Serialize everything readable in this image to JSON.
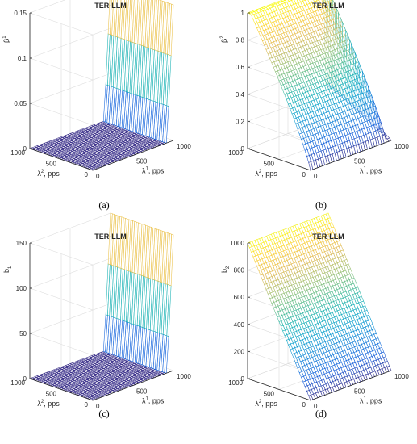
{
  "chart_data": [
    {
      "type": "surface",
      "panel_label": "(a)",
      "title": "TER-LLM",
      "xlabel": "λ1, pps",
      "ylabel": "λ2, pps",
      "zlabel": "β1",
      "xlabel_parts": {
        "sym": "λ",
        "sup": "1",
        "rest": ", pps"
      },
      "ylabel_parts": {
        "sym": "λ",
        "sup": "2",
        "rest": ", pps"
      },
      "zlabel_parts": {
        "sym": "β",
        "sup": "1",
        "sub": ""
      },
      "x_ticks": [
        "0",
        "500",
        "1000"
      ],
      "y_ticks": [
        "0",
        "500",
        "1000"
      ],
      "z_ticks": [
        "0",
        "0.05",
        "0.1",
        "0.15"
      ],
      "xlim": [
        0,
        1000
      ],
      "ylim": [
        0,
        1000
      ],
      "zlim": [
        0,
        0.15
      ],
      "grid": true,
      "surface": "zero for λ1 below ~920 pps, rising steeply to ~0.15 at λ1 = 1000 for all λ2",
      "colormap": "parula"
    },
    {
      "type": "surface",
      "panel_label": "(b)",
      "title": "TER-LLM",
      "xlabel": "λ1, pps",
      "ylabel": "λ2, pps",
      "zlabel": "β2",
      "xlabel_parts": {
        "sym": "λ",
        "sup": "1",
        "rest": ", pps"
      },
      "ylabel_parts": {
        "sym": "λ",
        "sup": "2",
        "rest": ", pps"
      },
      "zlabel_parts": {
        "sym": "β",
        "sup": "2",
        "sub": ""
      },
      "x_ticks": [
        "0",
        "500",
        "1000"
      ],
      "y_ticks": [
        "0",
        "500",
        "1000"
      ],
      "z_ticks": [
        "0",
        "0.2",
        "0.4",
        "0.6",
        "0.8",
        "1"
      ],
      "xlim": [
        0,
        1000
      ],
      "ylim": [
        0,
        1000
      ],
      "zlim": [
        0,
        1
      ],
      "grid": true,
      "surface": "zero near λ2 = 0, rising with λ2 toward ~1 at λ2 = 1000",
      "colormap": "parula"
    },
    {
      "type": "surface",
      "panel_label": "(c)",
      "title": "TER-LLM",
      "xlabel": "λ1, pps",
      "ylabel": "λ2, pps",
      "zlabel": "b1",
      "xlabel_parts": {
        "sym": "λ",
        "sup": "1",
        "rest": ", pps"
      },
      "ylabel_parts": {
        "sym": "λ",
        "sup": "2",
        "rest": ", pps"
      },
      "zlabel_parts": {
        "sym": "b",
        "sup": "",
        "sub": "1"
      },
      "x_ticks": [
        "0",
        "500",
        "1000"
      ],
      "y_ticks": [
        "0",
        "500",
        "1000"
      ],
      "z_ticks": [
        "0",
        "50",
        "100",
        "150"
      ],
      "xlim": [
        0,
        1000
      ],
      "ylim": [
        0,
        1000
      ],
      "zlim": [
        0,
        150
      ],
      "grid": true,
      "surface": "zero for λ1 below ~920 pps, rising steeply to ~150 at λ1 = 1000 for all λ2",
      "colormap": "parula"
    },
    {
      "type": "surface",
      "panel_label": "(d)",
      "title": "TER-LLM",
      "xlabel": "λ1, pps",
      "ylabel": "λ2, pps",
      "zlabel": "b2",
      "xlabel_parts": {
        "sym": "λ",
        "sup": "1",
        "rest": ", pps"
      },
      "ylabel_parts": {
        "sym": "λ",
        "sup": "2",
        "rest": ", pps"
      },
      "zlabel_parts": {
        "sym": "b",
        "sup": "",
        "sub": "2"
      },
      "x_ticks": [
        "0",
        "500",
        "1000"
      ],
      "y_ticks": [
        "0",
        "500",
        "1000"
      ],
      "z_ticks": [
        "0",
        "200",
        "400",
        "600",
        "800",
        "1000"
      ],
      "xlim": [
        0,
        1000
      ],
      "ylim": [
        0,
        1000
      ],
      "zlim": [
        0,
        1000
      ],
      "grid": true,
      "surface": "approximately equal to λ2: zero at λ2 = 0, ~1000 at λ2 = 1000",
      "colormap": "parula"
    }
  ]
}
